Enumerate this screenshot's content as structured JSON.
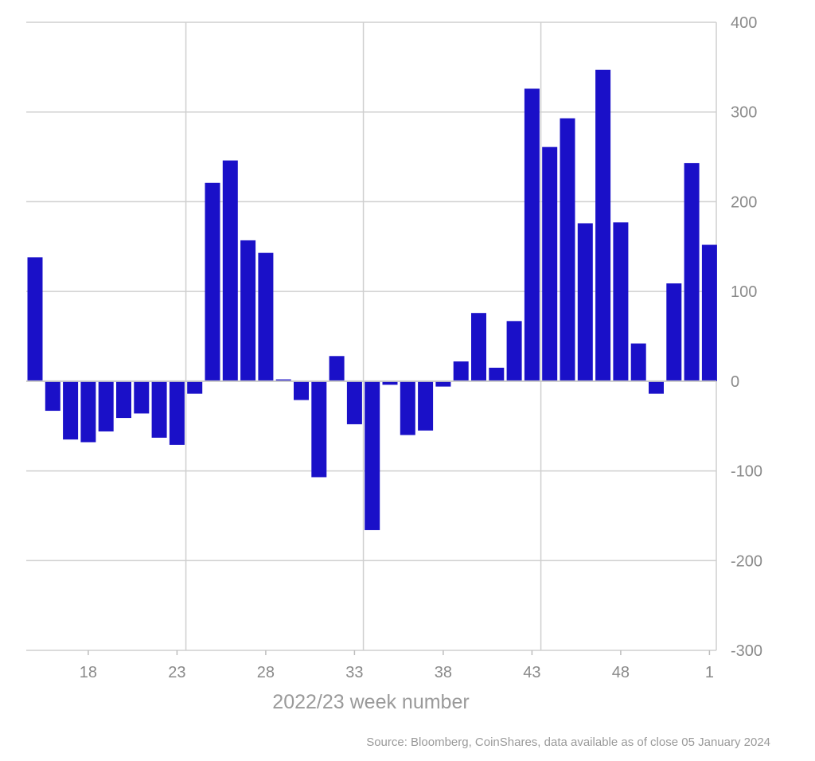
{
  "chart_data": {
    "type": "bar",
    "title": "",
    "xlabel": "2022/23 week number",
    "ylabel": "",
    "ylim": [
      -300,
      400
    ],
    "yticks": [
      "400",
      "300",
      "200",
      "100",
      "0",
      "-100",
      "-200",
      "-300"
    ],
    "ytick_values": [
      400,
      300,
      200,
      100,
      0,
      -100,
      -200,
      -300
    ],
    "xtick_labels": [
      "18",
      "23",
      "28",
      "33",
      "38",
      "43",
      "48",
      "1"
    ],
    "xtick_weeks": [
      18,
      23,
      28,
      33,
      38,
      43,
      48,
      53
    ],
    "weeks": [
      15,
      16,
      17,
      18,
      19,
      20,
      21,
      22,
      23,
      24,
      25,
      26,
      27,
      28,
      29,
      30,
      31,
      32,
      33,
      34,
      35,
      36,
      37,
      38,
      39,
      40,
      41,
      42,
      43,
      44,
      45,
      46,
      47,
      48,
      49,
      50,
      51,
      52,
      53
    ],
    "values": [
      138,
      -33,
      -65,
      -68,
      -56,
      -41,
      -36,
      -63,
      -71,
      -14,
      221,
      246,
      157,
      143,
      2,
      -21,
      -107,
      28,
      -48,
      -166,
      -4,
      -60,
      -55,
      -6,
      22,
      76,
      15,
      67,
      326,
      261,
      293,
      176,
      347,
      177,
      42,
      -14,
      109,
      243,
      152
    ],
    "grid": true,
    "bar_color": "#1a10c8",
    "source": "Source: Bloomberg, CoinShares, data available as of close 05 January 2024"
  }
}
